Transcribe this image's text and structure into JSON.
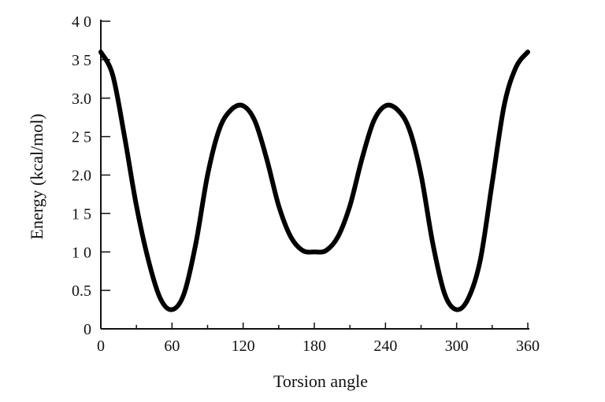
{
  "chart_data": {
    "type": "line",
    "title": "",
    "xlabel": "Torsion angle",
    "ylabel": "Energy (kcal/mol)",
    "xlim": [
      0,
      360
    ],
    "ylim": [
      0,
      4.0
    ],
    "x_ticks": [
      0,
      60,
      120,
      180,
      240,
      300,
      360
    ],
    "x_tick_labels": [
      "0",
      "60",
      "120",
      "180",
      "240",
      "300",
      "360"
    ],
    "y_ticks": [
      0,
      0.5,
      1.0,
      1.5,
      2.0,
      2.5,
      3.0,
      3.5,
      4.0
    ],
    "y_tick_labels": [
      "0",
      "0.5",
      "1 0",
      "1 5",
      "2.0",
      "2 5",
      "3.0",
      "3 5",
      "4 0"
    ],
    "grid": false,
    "series": [
      {
        "x": [
          0,
          10,
          20,
          30,
          40,
          50,
          60,
          70,
          80,
          90,
          100,
          110,
          120,
          130,
          140,
          150,
          160,
          170,
          180,
          190,
          200,
          210,
          220,
          230,
          240,
          250,
          260,
          270,
          280,
          290,
          300,
          310,
          320,
          330,
          340,
          350,
          360
        ],
        "y": [
          3.6,
          3.3,
          2.5,
          1.6,
          0.9,
          0.4,
          0.25,
          0.45,
          1.1,
          2.0,
          2.6,
          2.85,
          2.9,
          2.7,
          2.2,
          1.6,
          1.2,
          1.02,
          1.0,
          1.02,
          1.2,
          1.6,
          2.2,
          2.7,
          2.9,
          2.85,
          2.6,
          2.0,
          1.1,
          0.45,
          0.25,
          0.4,
          0.9,
          1.9,
          2.9,
          3.4,
          3.6
        ]
      }
    ]
  }
}
